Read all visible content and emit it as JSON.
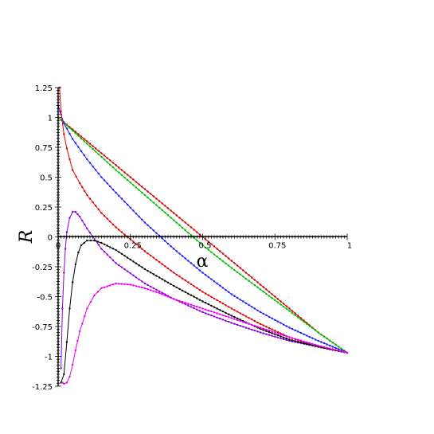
{
  "chart_data": {
    "type": "line",
    "xlabel": "α",
    "ylabel": "R",
    "xlim": [
      0,
      1
    ],
    "ylim": [
      -1.25,
      1.25
    ],
    "x_ticks": [
      "0",
      "0.25",
      "0.5",
      "0.75",
      "1"
    ],
    "y_ticks": [
      "1.25",
      "1",
      "0.75",
      "0.5",
      "0.25",
      "0",
      "-0.25",
      "-0.5",
      "-0.75",
      "-1",
      "-1.25"
    ],
    "grid": false,
    "legend": "none",
    "series": [
      {
        "color": "#cc0000",
        "x": [
          0,
          0.1,
          0.2,
          0.3,
          0.4,
          0.5,
          0.6,
          0.7,
          0.8,
          0.9,
          1.0
        ],
        "y": [
          1.0,
          0.8,
          0.6,
          0.4,
          0.2,
          0.0,
          -0.2,
          -0.4,
          -0.6,
          -0.8,
          -0.97
        ]
      },
      {
        "color": "#00bb00",
        "x": [
          0,
          0.1,
          0.2,
          0.3,
          0.4,
          0.5,
          0.6,
          0.7,
          0.8,
          0.9,
          1.0
        ],
        "y": [
          1.0,
          0.78,
          0.56,
          0.35,
          0.14,
          -0.07,
          -0.26,
          -0.44,
          -0.62,
          -0.8,
          -0.97
        ]
      },
      {
        "color": "#1a1aff",
        "x": [
          0,
          0.02,
          0.05,
          0.1,
          0.15,
          0.2,
          0.3,
          0.4,
          0.5,
          0.6,
          0.7,
          0.8,
          0.9,
          1.0
        ],
        "y": [
          1.1,
          0.95,
          0.82,
          0.65,
          0.5,
          0.37,
          0.12,
          -0.1,
          -0.3,
          -0.48,
          -0.63,
          -0.76,
          -0.87,
          -0.97
        ]
      },
      {
        "color": "#dd0000",
        "x": [
          0.005,
          0.01,
          0.02,
          0.03,
          0.05,
          0.075,
          0.1,
          0.15,
          0.2,
          0.3,
          0.4,
          0.5,
          0.6,
          0.7,
          0.8,
          0.9,
          1.0
        ],
        "y": [
          1.25,
          1.05,
          0.86,
          0.74,
          0.56,
          0.45,
          0.35,
          0.2,
          0.08,
          -0.12,
          -0.3,
          -0.46,
          -0.6,
          -0.73,
          -0.84,
          -0.92,
          -0.97
        ]
      },
      {
        "color": "#8800dd",
        "x": [
          0.01,
          0.015,
          0.02,
          0.025,
          0.03,
          0.04,
          0.05,
          0.06,
          0.075,
          0.1,
          0.15,
          0.2,
          0.3,
          0.4,
          0.5,
          0.6,
          0.7,
          0.8,
          0.9,
          1.0
        ],
        "y": [
          -1.1,
          -0.6,
          -0.3,
          -0.1,
          0.04,
          0.16,
          0.21,
          0.21,
          0.17,
          0.07,
          -0.1,
          -0.22,
          -0.39,
          -0.52,
          -0.63,
          -0.72,
          -0.8,
          -0.87,
          -0.92,
          -0.97
        ]
      },
      {
        "color": "#000000",
        "x": [
          0.01,
          0.02,
          0.03,
          0.04,
          0.05,
          0.06,
          0.07,
          0.08,
          0.1,
          0.125,
          0.15,
          0.2,
          0.25,
          0.3,
          0.4,
          0.5,
          0.6,
          0.7,
          0.8,
          0.9,
          1.0
        ],
        "y": [
          -1.22,
          -1.15,
          -0.88,
          -0.6,
          -0.38,
          -0.23,
          -0.13,
          -0.07,
          -0.03,
          -0.03,
          -0.05,
          -0.11,
          -0.19,
          -0.27,
          -0.41,
          -0.54,
          -0.66,
          -0.77,
          -0.86,
          -0.92,
          -0.97
        ]
      },
      {
        "color": "#ee00ee",
        "x": [
          0.015,
          0.02,
          0.03,
          0.04,
          0.05,
          0.06,
          0.075,
          0.1,
          0.125,
          0.15,
          0.2,
          0.25,
          0.3,
          0.35,
          0.4,
          0.5,
          0.6,
          0.7,
          0.8,
          0.9,
          1.0
        ],
        "y": [
          -1.22,
          -1.23,
          -1.22,
          -1.17,
          -1.07,
          -0.95,
          -0.79,
          -0.6,
          -0.49,
          -0.43,
          -0.39,
          -0.4,
          -0.43,
          -0.47,
          -0.52,
          -0.6,
          -0.68,
          -0.76,
          -0.84,
          -0.91,
          -0.97
        ]
      }
    ]
  }
}
